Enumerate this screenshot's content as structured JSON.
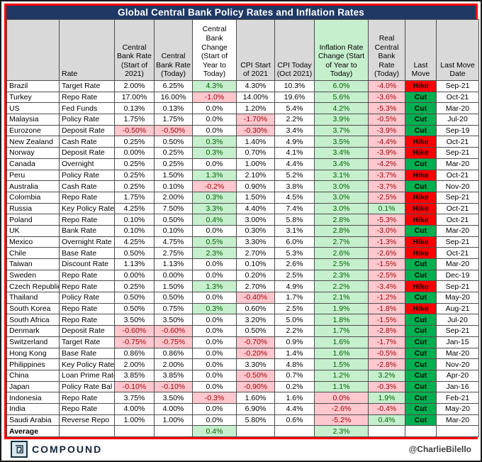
{
  "title": "Global Central Bank Policy Rates and Inflation Rates",
  "chart_data": {
    "type": "table",
    "columns": [
      "",
      "Rate",
      "Central Bank Rate (Start of 2021)",
      "Central Bank Rate (Today)",
      "Central Bank Change (Start of Year to Today)",
      "CPI Start of 2021",
      "CPI Today (Oct 2021)",
      "Inflation Rate Change (Start of Year to Today)",
      "Real Central Bank Rate (Today)",
      "Last Move",
      "Last Move Date"
    ],
    "column_shading": [
      "gray",
      "gray",
      "gray",
      "gray",
      "white",
      "gray",
      "gray",
      "green",
      "gray",
      "gray",
      "gray"
    ],
    "rows": [
      [
        "Brazil",
        "Target Rate",
        "2.00%",
        "6.25%",
        "4.3%",
        "4.30%",
        "10.3%",
        "6.0%",
        "-4.0%",
        "Hike",
        "Sep-21"
      ],
      [
        "Turkey",
        "Repo Rate",
        "17.00%",
        "16.00%",
        "-1.0%",
        "14.00%",
        "19.6%",
        "5.6%",
        "-3.6%",
        "Cut",
        "Oct-21"
      ],
      [
        "US",
        "Fed Funds",
        "0.13%",
        "0.13%",
        "0.0%",
        "1.20%",
        "5.4%",
        "4.2%",
        "-5.3%",
        "Cut",
        "Mar-20"
      ],
      [
        "Malaysia",
        "Policy Rate",
        "1.75%",
        "1.75%",
        "0.0%",
        "-1.70%",
        "2.2%",
        "3.9%",
        "-0.5%",
        "Cut",
        "Jul-20"
      ],
      [
        "Eurozone",
        "Deposit Rate",
        "-0.50%",
        "-0.50%",
        "0.0%",
        "-0.30%",
        "3.4%",
        "3.7%",
        "-3.9%",
        "Cut",
        "Sep-19"
      ],
      [
        "New Zealand",
        "Cash Rate",
        "0.25%",
        "0.50%",
        "0.3%",
        "1.40%",
        "4.9%",
        "3.5%",
        "-4.4%",
        "Hike",
        "Oct-21"
      ],
      [
        "Norway",
        "Deposit Rate",
        "0.00%",
        "0.25%",
        "0.3%",
        "0.70%",
        "4.1%",
        "3.4%",
        "-3.9%",
        "Hike",
        "Sep-21"
      ],
      [
        "Canada",
        "Overnight",
        "0.25%",
        "0.25%",
        "0.0%",
        "1.00%",
        "4.4%",
        "3.4%",
        "-4.2%",
        "Cut",
        "Mar-20"
      ],
      [
        "Peru",
        "Policy Rate",
        "0.25%",
        "1.50%",
        "1.3%",
        "2.10%",
        "5.2%",
        "3.1%",
        "-3.7%",
        "Hike",
        "Oct-21"
      ],
      [
        "Australia",
        "Cash Rate",
        "0.25%",
        "0.10%",
        "-0.2%",
        "0.90%",
        "3.8%",
        "3.0%",
        "-3.7%",
        "Cut",
        "Nov-20"
      ],
      [
        "Colombia",
        "Repo Rate",
        "1.75%",
        "2.00%",
        "0.3%",
        "1.50%",
        "4.5%",
        "3.0%",
        "-2.5%",
        "Hike",
        "Sep-21"
      ],
      [
        "Russia",
        "Key Policy Rate",
        "4.25%",
        "7.50%",
        "3.3%",
        "4.40%",
        "7.4%",
        "3.0%",
        "0.1%",
        "Hike",
        "Oct-21"
      ],
      [
        "Poland",
        "Repo Rate",
        "0.10%",
        "0.50%",
        "0.4%",
        "3.00%",
        "5.8%",
        "2.8%",
        "-5.3%",
        "Hike",
        "Oct-21"
      ],
      [
        "UK",
        "Bank Rate",
        "0.10%",
        "0.10%",
        "0.0%",
        "0.30%",
        "3.1%",
        "2.8%",
        "-3.0%",
        "Cut",
        "Mar-20"
      ],
      [
        "Mexico",
        "Overnight Rate",
        "4.25%",
        "4.75%",
        "0.5%",
        "3.30%",
        "6.0%",
        "2.7%",
        "-1.3%",
        "Hike",
        "Sep-21"
      ],
      [
        "Chile",
        "Base Rate",
        "0.50%",
        "2.75%",
        "2.3%",
        "2.70%",
        "5.3%",
        "2.6%",
        "-2.6%",
        "Hike",
        "Oct-21"
      ],
      [
        "Taiwan",
        "Discount Rate",
        "1.13%",
        "1.13%",
        "0.0%",
        "0.10%",
        "2.6%",
        "2.5%",
        "-1.5%",
        "Cut",
        "Mar-20"
      ],
      [
        "Sweden",
        "Repo Rate",
        "0.00%",
        "0.00%",
        "0.0%",
        "0.20%",
        "2.5%",
        "2.3%",
        "-2.5%",
        "Cut",
        "Dec-19"
      ],
      [
        "Czech Republic",
        "Repo Rate",
        "0.25%",
        "1.50%",
        "1.3%",
        "2.70%",
        "4.9%",
        "2.2%",
        "-3.4%",
        "Hike",
        "Sep-21"
      ],
      [
        "Thailand",
        "Policy Rate",
        "0.50%",
        "0.50%",
        "0.0%",
        "-0.40%",
        "1.7%",
        "2.1%",
        "-1.2%",
        "Cut",
        "May-20"
      ],
      [
        "South Korea",
        "Repo Rate",
        "0.50%",
        "0.75%",
        "0.3%",
        "0.60%",
        "2.5%",
        "1.9%",
        "-1.8%",
        "Hike",
        "Aug-21"
      ],
      [
        "South Africa",
        "Repo Rate",
        "3.50%",
        "3.50%",
        "0.0%",
        "3.20%",
        "5.0%",
        "1.8%",
        "-1.5%",
        "Cut",
        "Jul-20"
      ],
      [
        "Denmark",
        "Deposit Rate",
        "-0.60%",
        "-0.60%",
        "0.0%",
        "0.50%",
        "2.2%",
        "1.7%",
        "-2.8%",
        "Cut",
        "Sep-21"
      ],
      [
        "Switzerland",
        "Target Rate",
        "-0.75%",
        "-0.75%",
        "0.0%",
        "-0.70%",
        "0.9%",
        "1.6%",
        "-1.7%",
        "Cut",
        "Jan-15"
      ],
      [
        "Hong Kong",
        "Base Rate",
        "0.86%",
        "0.86%",
        "0.0%",
        "-0.20%",
        "1.4%",
        "1.6%",
        "-0.5%",
        "Cut",
        "Mar-20"
      ],
      [
        "Philippines",
        "Key Policy Rate",
        "2.00%",
        "2.00%",
        "0.0%",
        "3.30%",
        "4.8%",
        "1.5%",
        "-2.8%",
        "Cut",
        "Nov-20"
      ],
      [
        "China",
        "Loan Prime Rate",
        "3.85%",
        "3.85%",
        "0.0%",
        "-0.50%",
        "0.7%",
        "1.2%",
        "3.2%",
        "Cut",
        "Apr-20"
      ],
      [
        "Japan",
        "Policy Rate Bal",
        "-0.10%",
        "-0.10%",
        "0.0%",
        "-0.90%",
        "0.2%",
        "1.1%",
        "-0.3%",
        "Cut",
        "Jan-16"
      ],
      [
        "Indonesia",
        "Repo Rate",
        "3.75%",
        "3.50%",
        "-0.3%",
        "1.60%",
        "1.6%",
        "0.0%",
        "1.9%",
        "Cut",
        "Feb-21"
      ],
      [
        "India",
        "Repo Rate",
        "4.00%",
        "4.00%",
        "0.0%",
        "6.90%",
        "4.4%",
        "-2.6%",
        "-0.4%",
        "Cut",
        "May-20"
      ],
      [
        "Saudi Arabia",
        "Reverse Repo",
        "1.00%",
        "1.00%",
        "0.0%",
        "5.80%",
        "0.6%",
        "-5.2%",
        "0.4%",
        "Cut",
        "Mar-20"
      ]
    ],
    "average_row": {
      "label": "Average",
      "central_bank_change": "0.4%",
      "inflation_change": "2.3%"
    }
  },
  "colors": {
    "outer_border_red": "#FF0000",
    "title_bg": "#1F3864",
    "header_bg": "#D9D9D9",
    "positive_bg": "#C6EFCE",
    "positive_text": "#006100",
    "negative_bg": "#FFC7CE",
    "negative_text": "#9C0006",
    "hike_bg": "#FF0000",
    "cut_bg": "#00B050"
  },
  "footer": {
    "brand": "COMPOUND",
    "handle": "@CharlieBilello"
  }
}
